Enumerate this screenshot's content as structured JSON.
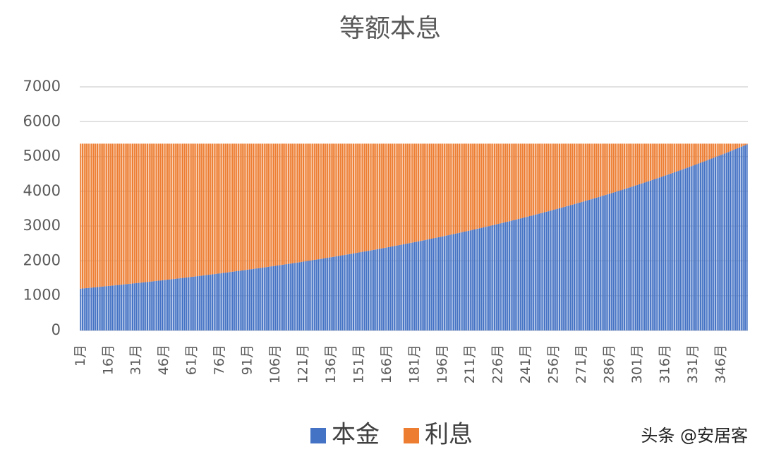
{
  "chart_data": {
    "type": "bar",
    "stacked": true,
    "title": "等额本息",
    "watermark": "头条 @安居客",
    "ylim": [
      0,
      7000
    ],
    "yticks": [
      0,
      1000,
      2000,
      3000,
      4000,
      5000,
      6000,
      7000
    ],
    "grid": true,
    "legend": "bottom",
    "categories": [
      "1月",
      null,
      null,
      null,
      null,
      null,
      null,
      null,
      null,
      null,
      null,
      null,
      null,
      null,
      null,
      "16月",
      null,
      null,
      null,
      null,
      null,
      null,
      null,
      null,
      null,
      null,
      null,
      null,
      null,
      null,
      "31月",
      null,
      null,
      null,
      null,
      null,
      null,
      null,
      null,
      null,
      null,
      null,
      null,
      null,
      null,
      "46月",
      null,
      null,
      null,
      null,
      null,
      null,
      null,
      null,
      null,
      null,
      null,
      null,
      null,
      null,
      "61月",
      null,
      null,
      null,
      null,
      null,
      null,
      null,
      null,
      null,
      null,
      null,
      null,
      null,
      null,
      "76月",
      null,
      null,
      null,
      null,
      null,
      null,
      null,
      null,
      null,
      null,
      null,
      null,
      null,
      null,
      "91月",
      null,
      null,
      null,
      null,
      null,
      null,
      null,
      null,
      null,
      null,
      null,
      null,
      null,
      null,
      "106月",
      null,
      null,
      null,
      null,
      null,
      null,
      null,
      null,
      null,
      null,
      null,
      null,
      null,
      null,
      "121月",
      null,
      null,
      null,
      null,
      null,
      null,
      null,
      null,
      null,
      null,
      null,
      null,
      null,
      null,
      "136月",
      null,
      null,
      null,
      null,
      null,
      null,
      null,
      null,
      null,
      null,
      null,
      null,
      null,
      null,
      "151月",
      null,
      null,
      null,
      null,
      null,
      null,
      null,
      null,
      null,
      null,
      null,
      null,
      null,
      null,
      "166月",
      null,
      null,
      null,
      null,
      null,
      null,
      null,
      null,
      null,
      null,
      null,
      null,
      null,
      null,
      "181月",
      null,
      null,
      null,
      null,
      null,
      null,
      null,
      null,
      null,
      null,
      null,
      null,
      null,
      null,
      "196月",
      null,
      null,
      null,
      null,
      null,
      null,
      null,
      null,
      null,
      null,
      null,
      null,
      null,
      null,
      "211月",
      null,
      null,
      null,
      null,
      null,
      null,
      null,
      null,
      null,
      null,
      null,
      null,
      null,
      null,
      "226月",
      null,
      null,
      null,
      null,
      null,
      null,
      null,
      null,
      null,
      null,
      null,
      null,
      null,
      null,
      "241月",
      null,
      null,
      null,
      null,
      null,
      null,
      null,
      null,
      null,
      null,
      null,
      null,
      null,
      null,
      "256月",
      null,
      null,
      null,
      null,
      null,
      null,
      null,
      null,
      null,
      null,
      null,
      null,
      null,
      null,
      "271月",
      null,
      null,
      null,
      null,
      null,
      null,
      null,
      null,
      null,
      null,
      null,
      null,
      null,
      null,
      "286月",
      null,
      null,
      null,
      null,
      null,
      null,
      null,
      null,
      null,
      null,
      null,
      null,
      null,
      null,
      "301月",
      null,
      null,
      null,
      null,
      null,
      null,
      null,
      null,
      null,
      null,
      null,
      null,
      null,
      null,
      "316月",
      null,
      null,
      null,
      null,
      null,
      null,
      null,
      null,
      null,
      null,
      null,
      null,
      null,
      null,
      "331月",
      null,
      null,
      null,
      null,
      null,
      null,
      null,
      null,
      null,
      null,
      null,
      null,
      null,
      null,
      "346月",
      null,
      null,
      null,
      null,
      null,
      null,
      null,
      null,
      null,
      null,
      null,
      null,
      null,
      null
    ],
    "series": [
      {
        "name": "本金",
        "color": "#4472c4",
        "values": [
          1202,
          1207,
          1212,
          1217,
          1222,
          1227,
          1232,
          1237,
          1242,
          1247,
          1253,
          1258,
          1263,
          1268,
          1274,
          1279,
          1284,
          1290,
          1295,
          1300,
          1306,
          1311,
          1317,
          1322,
          1328,
          1333,
          1339,
          1344,
          1350,
          1356,
          1361,
          1367,
          1373,
          1378,
          1384,
          1390,
          1396,
          1401,
          1407,
          1413,
          1419,
          1425,
          1431,
          1437,
          1443,
          1449,
          1455,
          1461,
          1467,
          1473,
          1479,
          1485,
          1492,
          1498,
          1504,
          1510,
          1517,
          1523,
          1529,
          1536,
          1542,
          1548,
          1555,
          1561,
          1568,
          1574,
          1581,
          1588,
          1594,
          1601,
          1607,
          1614,
          1621,
          1628,
          1634,
          1641,
          1648,
          1655,
          1662,
          1669,
          1676,
          1683,
          1690,
          1697,
          1704,
          1711,
          1718,
          1725,
          1732,
          1740,
          1747,
          1754,
          1761,
          1769,
          1776,
          1784,
          1791,
          1798,
          1806,
          1813,
          1821,
          1829,
          1836,
          1844,
          1852,
          1859,
          1867,
          1875,
          1883,
          1890,
          1898,
          1906,
          1914,
          1922,
          1930,
          1938,
          1946,
          1954,
          1963,
          1971,
          1979,
          1987,
          1995,
          2004,
          2012,
          2021,
          2029,
          2037,
          2046,
          2054,
          2063,
          2072,
          2080,
          2089,
          2098,
          2106,
          2115,
          2124,
          2133,
          2142,
          2151,
          2160,
          2169,
          2178,
          2187,
          2196,
          2205,
          2214,
          2223,
          2233,
          2242,
          2251,
          2261,
          2270,
          2279,
          2289,
          2298,
          2308,
          2318,
          2327,
          2337,
          2347,
          2357,
          2366,
          2376,
          2386,
          2396,
          2406,
          2416,
          2426,
          2436,
          2446,
          2457,
          2467,
          2477,
          2487,
          2498,
          2508,
          2519,
          2529,
          2540,
          2550,
          2561,
          2572,
          2582,
          2593,
          2604,
          2615,
          2626,
          2637,
          2648,
          2659,
          2670,
          2681,
          2692,
          2703,
          2714,
          2726,
          2737,
          2748,
          2760,
          2771,
          2783,
          2795,
          2806,
          2818,
          2830,
          2841,
          2853,
          2865,
          2877,
          2889,
          2901,
          2913,
          2925,
          2938,
          2950,
          2962,
          2974,
          2987,
          2999,
          3012,
          3024,
          3037,
          3050,
          3062,
          3075,
          3088,
          3101,
          3114,
          3127,
          3140,
          3153,
          3166,
          3179,
          3192,
          3206,
          3219,
          3232,
          3246,
          3259,
          3273,
          3287,
          3300,
          3314,
          3328,
          3342,
          3356,
          3370,
          3384,
          3398,
          3412,
          3426,
          3440,
          3455,
          3469,
          3484,
          3498,
          3513,
          3527,
          3542,
          3557,
          3572,
          3586,
          3601,
          3616,
          3631,
          3647,
          3662,
          3677,
          3692,
          3708,
          3723,
          3739,
          3754,
          3770,
          3786,
          3801,
          3817,
          3833,
          3849,
          3865,
          3881,
          3897,
          3914,
          3930,
          3946,
          3963,
          3979,
          3996,
          4013,
          4029,
          4046,
          4063,
          4080,
          4097,
          4114,
          4131,
          4148,
          4166,
          4183,
          4200,
          4218,
          4235,
          4253,
          4271,
          4289,
          4306,
          4324,
          4342,
          4361,
          4379,
          4397,
          4415,
          4434,
          4452,
          4471,
          4489,
          4508,
          4527,
          4546,
          4565,
          4584,
          4603,
          4622,
          4641,
          4660,
          4680,
          4699,
          4719,
          4739,
          4758,
          4778,
          4798,
          4818,
          4838,
          4858,
          4879,
          4899,
          4919,
          4940,
          4960,
          4981,
          5002,
          5023,
          5044,
          5065,
          5086,
          5107,
          5128,
          5150,
          5171,
          5193,
          5214,
          5236,
          5258,
          5280,
          5302,
          5324,
          5346
        ]
      },
      {
        "name": "利息",
        "color": "#ed7d31",
        "values": [
          4166,
          4161,
          4156,
          4151,
          4146,
          4141,
          4136,
          4131,
          4126,
          4121,
          4115,
          4110,
          4105,
          4100,
          4094,
          4089,
          4084,
          4078,
          4073,
          4068,
          4062,
          4057,
          4051,
          4046,
          4040,
          4035,
          4029,
          4024,
          4018,
          4012,
          4007,
          4001,
          3995,
          3990,
          3984,
          3978,
          3972,
          3967,
          3961,
          3955,
          3949,
          3943,
          3937,
          3931,
          3925,
          3919,
          3913,
          3907,
          3901,
          3895,
          3889,
          3883,
          3876,
          3870,
          3864,
          3858,
          3851,
          3845,
          3839,
          3832,
          3826,
          3820,
          3813,
          3807,
          3800,
          3794,
          3787,
          3780,
          3774,
          3767,
          3761,
          3754,
          3747,
          3740,
          3734,
          3727,
          3720,
          3713,
          3706,
          3699,
          3692,
          3685,
          3678,
          3671,
          3664,
          3657,
          3650,
          3643,
          3636,
          3628,
          3621,
          3614,
          3607,
          3599,
          3592,
          3584,
          3577,
          3570,
          3562,
          3555,
          3547,
          3539,
          3532,
          3524,
          3516,
          3509,
          3501,
          3493,
          3485,
          3478,
          3470,
          3462,
          3454,
          3446,
          3438,
          3430,
          3422,
          3414,
          3405,
          3397,
          3389,
          3381,
          3373,
          3364,
          3356,
          3347,
          3339,
          3331,
          3322,
          3314,
          3305,
          3296,
          3288,
          3279,
          3270,
          3262,
          3253,
          3244,
          3235,
          3226,
          3217,
          3208,
          3199,
          3190,
          3181,
          3172,
          3163,
          3154,
          3145,
          3135,
          3126,
          3117,
          3107,
          3098,
          3089,
          3079,
          3070,
          3060,
          3050,
          3041,
          3031,
          3021,
          3011,
          3002,
          2992,
          2982,
          2972,
          2962,
          2952,
          2942,
          2932,
          2922,
          2911,
          2901,
          2891,
          2881,
          2870,
          2860,
          2849,
          2839,
          2828,
          2818,
          2807,
          2796,
          2786,
          2775,
          2764,
          2753,
          2742,
          2731,
          2720,
          2709,
          2698,
          2687,
          2676,
          2665,
          2654,
          2642,
          2631,
          2620,
          2608,
          2597,
          2585,
          2573,
          2562,
          2550,
          2538,
          2527,
          2515,
          2503,
          2491,
          2479,
          2467,
          2455,
          2443,
          2430,
          2418,
          2406,
          2394,
          2381,
          2369,
          2356,
          2344,
          2331,
          2318,
          2306,
          2293,
          2280,
          2267,
          2254,
          2241,
          2228,
          2215,
          2202,
          2189,
          2176,
          2162,
          2149,
          2136,
          2122,
          2109,
          2095,
          2081,
          2068,
          2054,
          2040,
          2026,
          2012,
          1998,
          1984,
          1970,
          1956,
          1942,
          1928,
          1913,
          1899,
          1884,
          1870,
          1855,
          1841,
          1826,
          1811,
          1796,
          1782,
          1767,
          1752,
          1737,
          1721,
          1706,
          1691,
          1676,
          1660,
          1645,
          1629,
          1614,
          1598,
          1582,
          1567,
          1551,
          1535,
          1519,
          1503,
          1487,
          1471,
          1454,
          1438,
          1422,
          1405,
          1389,
          1372,
          1355,
          1339,
          1322,
          1305,
          1288,
          1271,
          1254,
          1237,
          1220,
          1202,
          1185,
          1168,
          1150,
          1133,
          1115,
          1097,
          1079,
          1062,
          1044,
          1026,
          1007,
          989,
          971,
          953,
          934,
          916,
          897,
          879,
          860,
          841,
          822,
          803,
          784,
          765,
          746,
          727,
          708,
          688,
          669,
          649,
          629,
          610,
          590,
          570,
          550,
          530,
          510,
          489,
          469,
          449,
          428,
          408,
          387,
          366,
          345,
          324,
          303,
          282,
          261,
          240,
          218,
          197,
          175,
          154,
          132,
          110,
          88,
          66,
          44,
          22
        ]
      }
    ]
  }
}
